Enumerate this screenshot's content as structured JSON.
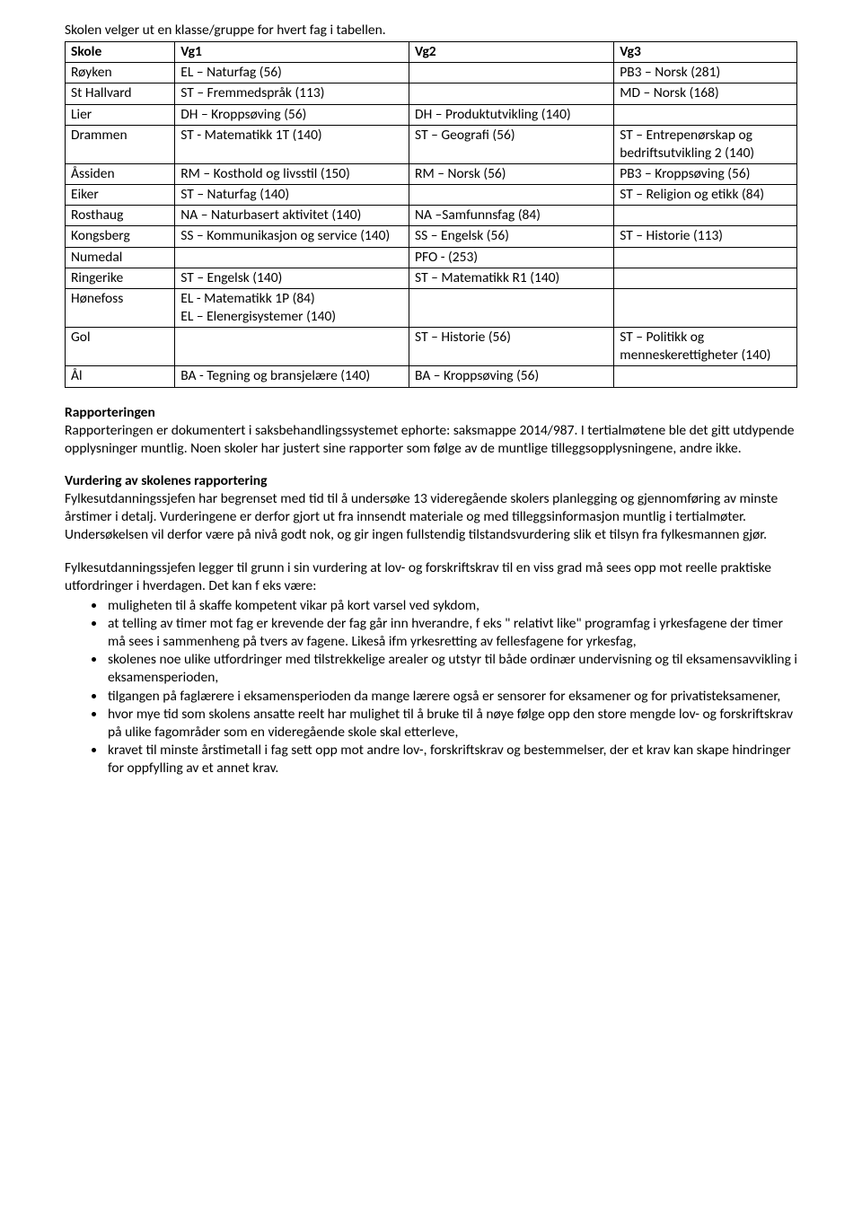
{
  "intro": "Skolen velger ut en klasse/gruppe for hvert fag i tabellen.",
  "table": {
    "columns": [
      "Skole",
      "Vg1",
      "Vg2",
      "Vg3"
    ],
    "rows": [
      [
        "Røyken",
        "EL – Naturfag (56)",
        "",
        "PB3 – Norsk (281)"
      ],
      [
        "St Hallvard",
        "ST – Fremmedspråk (113)",
        "",
        "MD – Norsk (168)"
      ],
      [
        "Lier",
        "DH – Kroppsøving (56)",
        "DH – Produktutvikling (140)",
        ""
      ],
      [
        "Drammen",
        "ST - Matematikk 1T (140)",
        "ST – Geografi (56)",
        "ST – Entrepenørskap og bedriftsutvikling 2 (140)"
      ],
      [
        "Åssiden",
        "RM – Kosthold og livsstil (150)",
        "RM – Norsk (56)",
        "PB3 – Kroppsøving (56)"
      ],
      [
        "Eiker",
        "ST – Naturfag (140)",
        "",
        "ST – Religion og etikk (84)"
      ],
      [
        "Rosthaug",
        "NA – Naturbasert aktivitet (140)",
        "NA –Samfunnsfag (84)",
        ""
      ],
      [
        "Kongsberg",
        "SS – Kommunikasjon og service (140)",
        "SS – Engelsk (56)",
        "ST – Historie (113)"
      ],
      [
        "Numedal",
        "",
        "PFO - (253)",
        ""
      ],
      [
        "Ringerike",
        "ST – Engelsk (140)",
        "ST – Matematikk R1 (140)",
        ""
      ],
      [
        "Hønefoss",
        "EL - Matematikk 1P (84)\nEL – Elenergisystemer (140)",
        "",
        ""
      ],
      [
        "Gol",
        "",
        "ST – Historie (56)",
        "ST – Politikk og menneskerettigheter (140)"
      ],
      [
        "Ål",
        "BA - Tegning og bransjelære (140)",
        "BA – Kroppsøving (56)",
        ""
      ]
    ]
  },
  "sections": {
    "rapportering_title": "Rapporteringen",
    "rapportering_body": "Rapporteringen er dokumentert i saksbehandlingssystemet ephorte: saksmappe 2014/987. I tertialmøtene ble det gitt utdypende opplysninger muntlig. Noen skoler har justert sine rapporter som følge av de muntlige tilleggsopplysningene, andre ikke.",
    "vurdering_title": "Vurdering av skolenes rapportering",
    "vurdering_body": "Fylkesutdanningssjefen har begrenset med tid til å undersøke 13 videregående skolers planlegging og gjennomføring av minste årstimer i detalj. Vurderingene er derfor gjort ut fra innsendt materiale og med tilleggsinformasjon muntlig i tertialmøter. Undersøkelsen vil derfor være på nivå godt nok, og gir ingen fullstendig tilstandsvurdering slik et tilsyn fra fylkesmannen gjør.",
    "lead_para": "Fylkesutdanningssjefen legger til grunn i sin vurdering at lov- og forskriftskrav til en viss grad må sees opp mot reelle praktiske utfordringer i hverdagen. Det kan f eks være:",
    "bullets": [
      "muligheten til å skaffe kompetent vikar på kort varsel ved sykdom,",
      "at telling av timer mot fag er krevende der fag går inn hverandre, f eks \" relativt like\" programfag i yrkesfagene  der timer må sees i sammenheng på tvers av fagene. Likeså ifm yrkesretting av fellesfagene for yrkesfag,",
      "skolenes noe ulike utfordringer med tilstrekkelige arealer og utstyr til både ordinær undervisning og til eksamensavvikling i eksamensperioden,",
      "tilgangen på faglærere i eksamensperioden da mange lærere også er sensorer for eksamener og for privatisteksamener,",
      "hvor mye tid som skolens ansatte reelt har mulighet til å bruke til å nøye følge opp den store mengde lov- og forskriftskrav på ulike fagområder som en videregående skole skal etterleve,",
      "kravet til minste årstimetall i fag sett opp mot andre lov-, forskriftskrav og bestemmelser, der et krav kan skape hindringer for oppfylling av et annet krav."
    ]
  }
}
